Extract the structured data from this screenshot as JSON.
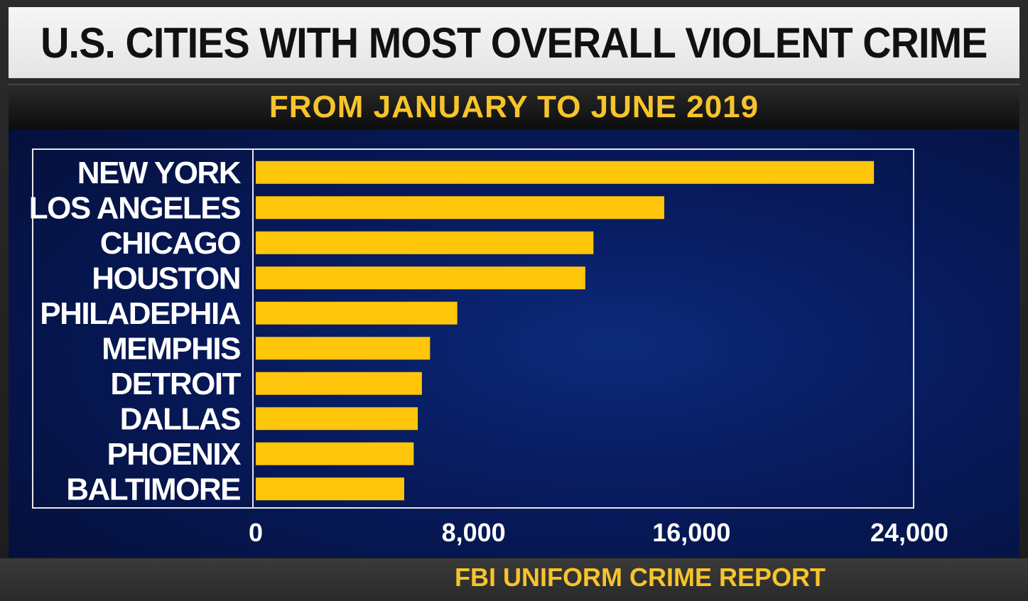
{
  "title": "U.S. CITIES WITH MOST OVERALL VIOLENT CRIME",
  "subtitle": "FROM JANUARY TO JUNE 2019",
  "source": "FBI UNIFORM CRIME REPORT",
  "colors": {
    "bar": "#ffc60b",
    "accent_text": "#f7c42a",
    "panel": "#07195a"
  },
  "chart_data": {
    "type": "bar",
    "orientation": "horizontal",
    "categories": [
      "NEW YORK",
      "LOS ANGELES",
      "CHICAGO",
      "HOUSTON",
      "PHILADEPHIA",
      "MEMPHIS",
      "DETROIT",
      "DALLAS",
      "PHOENIX",
      "BALTIMORE"
    ],
    "values": [
      22700,
      15000,
      12400,
      12100,
      7400,
      6400,
      6100,
      5950,
      5800,
      5450
    ],
    "xlim": [
      0,
      25000
    ],
    "xticks": [
      0,
      8000,
      16000,
      24000
    ],
    "xtick_labels": [
      "0",
      "8,000",
      "16,000",
      "24,000"
    ],
    "grid": false
  }
}
